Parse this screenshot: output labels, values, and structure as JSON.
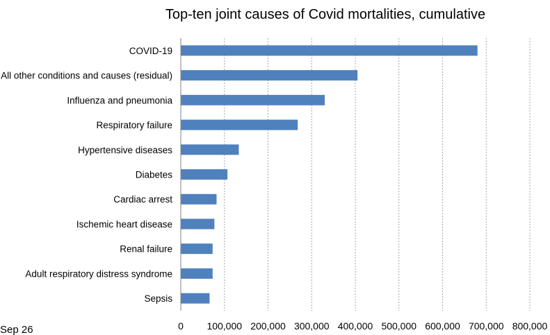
{
  "chart_data": {
    "type": "bar",
    "orientation": "horizontal",
    "title": "Top-ten joint causes of Covid mortalities, cumulative",
    "xlabel": "",
    "ylabel": "",
    "categories": [
      "COVID-19",
      "All other conditions and causes (residual)",
      "Influenza and pneumonia",
      "Respiratory failure",
      "Hypertensive diseases",
      "Diabetes",
      "Cardiac arrest",
      "Ischemic heart disease",
      "Renal failure",
      "Adult respiratory distress syndrome",
      "Sepsis"
    ],
    "values": [
      680000,
      405000,
      330000,
      268000,
      133000,
      107000,
      82000,
      77000,
      73000,
      73000,
      66000
    ],
    "xlim": [
      0,
      800000
    ],
    "xticks": [
      0,
      100000,
      200000,
      300000,
      400000,
      500000,
      600000,
      700000,
      800000
    ],
    "xtick_labels": [
      "0",
      "100,000",
      "200,000",
      "300,000",
      "400,000",
      "500,000",
      "600,000",
      "700,000",
      "800,000"
    ],
    "grid": "vertical dotted",
    "legend": "none",
    "bar_color": "#4f81bd"
  },
  "footer": {
    "date_label": "Sep 26"
  }
}
